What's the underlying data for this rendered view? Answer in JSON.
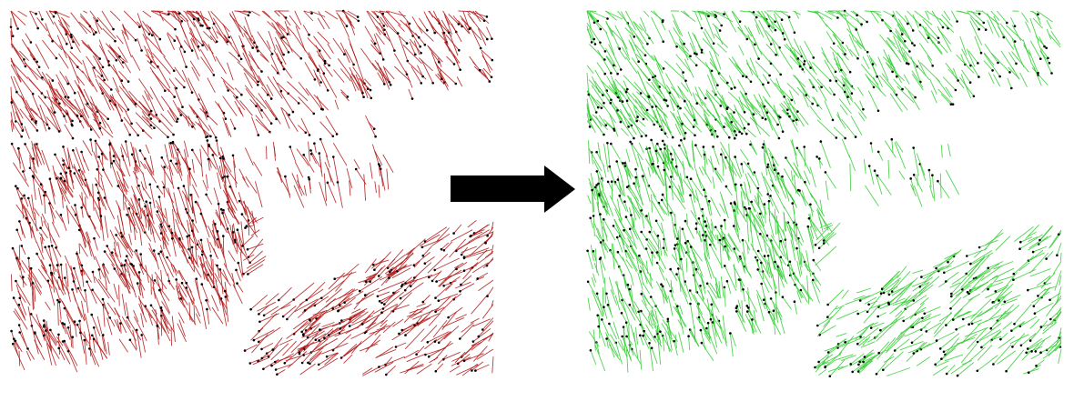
{
  "figure": {
    "panels": [
      {
        "id": "before",
        "stroke_color": "#b01818",
        "dot_color": "#000000",
        "seed": 11
      },
      {
        "id": "after",
        "stroke_color": "#33cc33",
        "dot_color": "#000000",
        "seed": 29
      }
    ],
    "arrow": {
      "direction": "right",
      "color": "#000000"
    },
    "background": "#ffffff"
  }
}
